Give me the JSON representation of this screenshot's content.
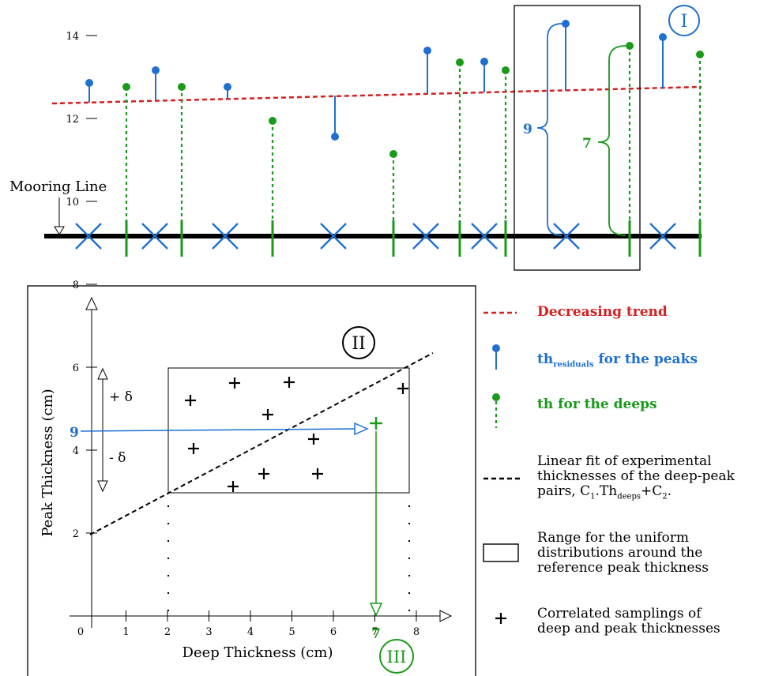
{
  "top": {
    "marker_I": "I",
    "mooring_label": "Mooring Line",
    "residual_brace_value": "9",
    "deep_brace_value": "7"
  },
  "plot": {
    "marker_II": "II",
    "marker_III": "III",
    "xlabel": "Deep Thickness (cm)",
    "ylabel": "Peak Thickness (cm)",
    "x_ticks": [
      "0",
      "1",
      "2",
      "3",
      "4",
      "5",
      "6",
      "7",
      "8"
    ],
    "y_ticks": [
      "2",
      "4",
      "6",
      "8",
      "10",
      "12",
      "14"
    ],
    "delta_plus": "+ δ",
    "delta_minus": "- δ",
    "peak_value_label": "9",
    "deep_value_label": "7"
  },
  "legend": {
    "trend": "Decreasing trend",
    "residuals_prefix": "th",
    "residuals_sub": "residuals",
    "residuals_suffix": " for the peaks",
    "deeps": "th for the deeps",
    "fit_line1": "Linear fit of experimental",
    "fit_line2": "thicknesses of the deep-peak",
    "fit_line3_a": "pairs, C",
    "fit_line3_sub1": "1",
    "fit_line3_b": ".Th",
    "fit_line3_sub2": "deeps",
    "fit_line3_c": "+C",
    "fit_line3_sub3": "2",
    "fit_line3_d": ".",
    "range_line1": "Range for the uniform",
    "range_line2": "distributions around the",
    "range_line3": "reference peak thickness",
    "samp_line1": "Correlated samplings of",
    "samp_line2": "deep and peak thicknesses"
  },
  "colors": {
    "blue": "#1f6fd1",
    "green": "#1a9a1a",
    "red": "#d42020",
    "black": "#000000"
  },
  "icons": {
    "x_marker": "cross-x-icon",
    "plus_marker": "plus-icon",
    "arrow": "open-triangle-arrow-icon"
  }
}
